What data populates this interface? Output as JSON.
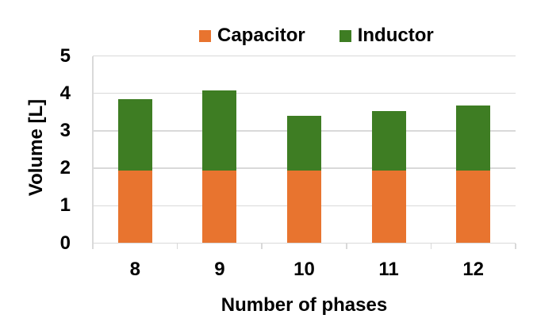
{
  "chart_data": {
    "type": "bar",
    "stacked": true,
    "orientation": "vertical",
    "categories": [
      "8",
      "9",
      "10",
      "11",
      "12"
    ],
    "series": [
      {
        "name": "Capacitor",
        "color": "#e8742f",
        "values": [
          1.93,
          1.93,
          1.93,
          1.93,
          1.93
        ]
      },
      {
        "name": "Inductor",
        "color": "#3e7d23",
        "values": [
          1.91,
          2.15,
          1.46,
          1.59,
          1.74
        ]
      }
    ],
    "stack_totals": [
      3.84,
      4.08,
      3.39,
      3.52,
      3.67
    ],
    "title": "",
    "xlabel": "Number of phases",
    "ylabel": "Volume [L]",
    "ylim": [
      0,
      5
    ],
    "yticks": [
      0,
      1,
      2,
      3,
      4,
      5
    ],
    "legend": {
      "position": "top",
      "entries": [
        "Capacitor",
        "Inductor"
      ]
    },
    "grid": "horizontal",
    "gridline_color": "#d9d9d9",
    "axis_text_color": "#000000",
    "background_color": "#ffffff"
  }
}
